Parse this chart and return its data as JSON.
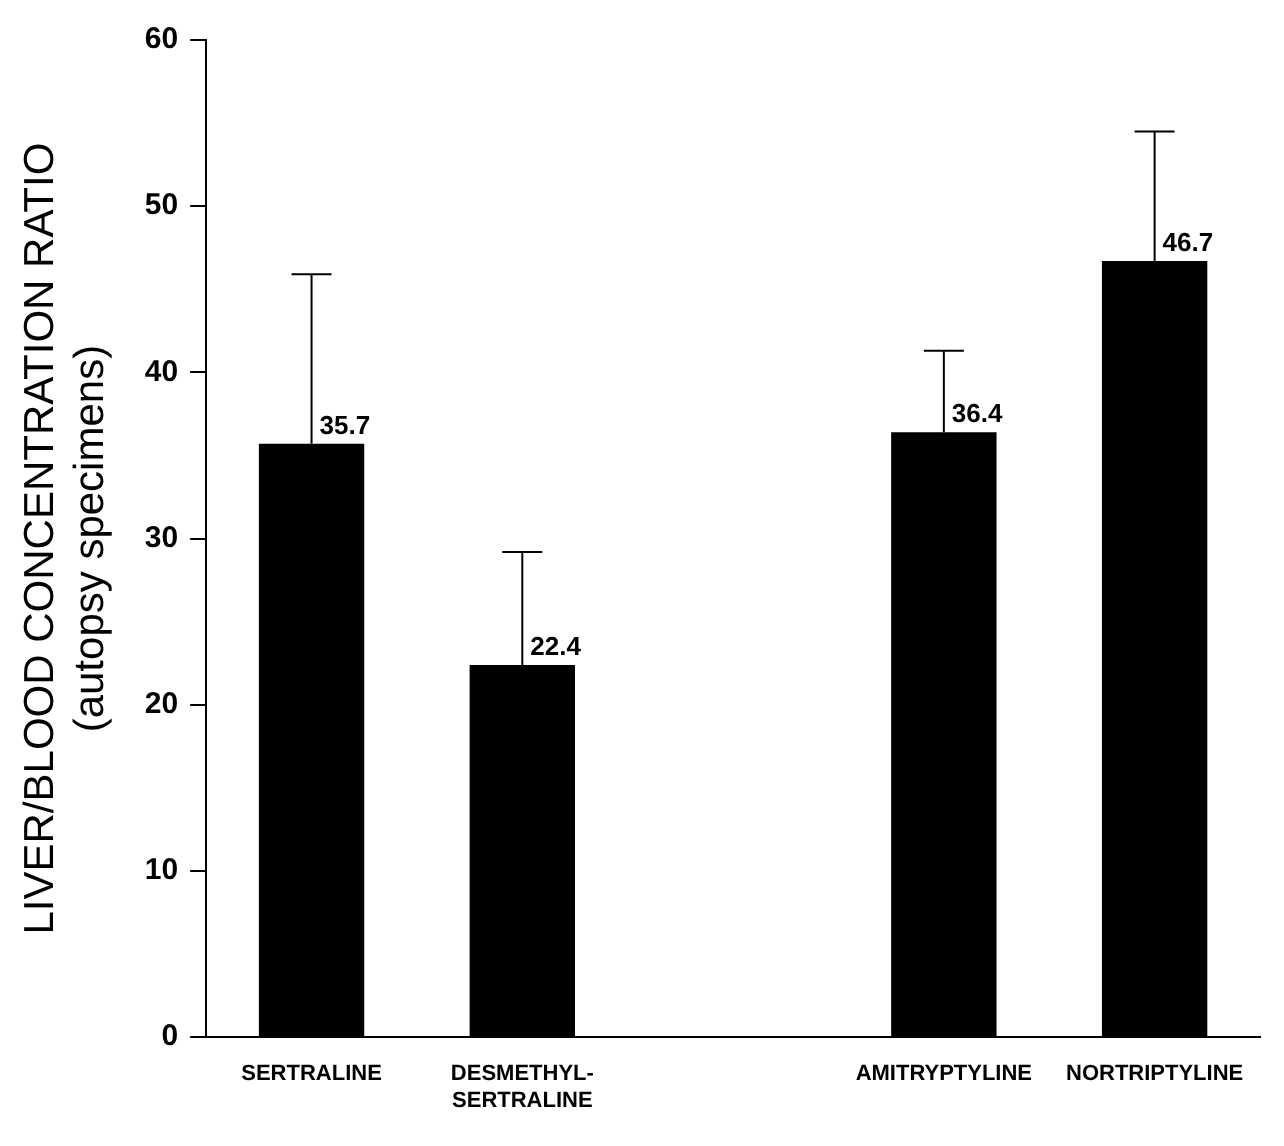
{
  "chart_data": {
    "type": "bar",
    "ylabel": "LIVER/BLOOD CONCENTRATION RATIO\n(autopsy specimens)",
    "categories": [
      "SERTRALINE",
      "DESMETHYL-\nSERTRALINE",
      null,
      "AMITRYPTYLINE",
      "NORTRIPTYLINE"
    ],
    "values": [
      35.7,
      22.4,
      null,
      36.4,
      46.7
    ],
    "errors": [
      [
        35.7,
        45.9
      ],
      [
        22.4,
        29.2
      ],
      null,
      [
        36.4,
        41.3
      ],
      [
        46.7,
        54.5
      ]
    ],
    "color": "#000000",
    "ylim": [
      0,
      60
    ],
    "yticks": [
      0,
      10,
      20,
      30,
      40,
      50,
      60
    ],
    "grid": false,
    "legend": false,
    "data_labels": true
  }
}
